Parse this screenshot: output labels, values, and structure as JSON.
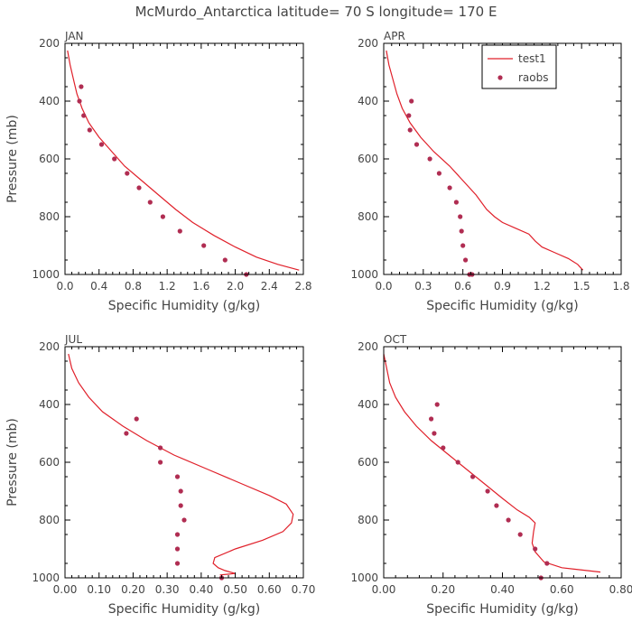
{
  "title": "McMurdo_Antarctica  latitude= 70 S longitude= 170 E",
  "colors": {
    "model": "#e0202a",
    "obs": "#b02d52",
    "axis": "#000000",
    "text": "#444444"
  },
  "legend": {
    "model_label": "test1",
    "obs_label": "raobs",
    "placement": "top-right of APR panel"
  },
  "chart_data": [
    {
      "type": "line+scatter",
      "panel": "JAN",
      "xlabel": "Specific Humidity (g/kg)",
      "ylabel": "Pressure (mb)",
      "xlim": [
        0,
        2.8
      ],
      "xticks": [
        0,
        0.4,
        0.8,
        1.2,
        1.6,
        2.0,
        2.4,
        2.8
      ],
      "xtick_labels": [
        "0.0",
        "0.4",
        "0.8",
        "1.2",
        "1.6",
        "2.0",
        "2.4",
        "2.8"
      ],
      "ylim": [
        200,
        1000
      ],
      "yticks": [
        200,
        400,
        600,
        800,
        1000
      ],
      "ytick_labels": [
        "200",
        "400",
        "600",
        "800",
        "1000"
      ],
      "model": {
        "name": "test1",
        "x": [
          0.03,
          0.06,
          0.1,
          0.14,
          0.2,
          0.28,
          0.4,
          0.55,
          0.7,
          0.9,
          1.1,
          1.3,
          1.5,
          1.75,
          2.0,
          2.25,
          2.5,
          2.75
        ],
        "p": [
          225,
          275,
          325,
          375,
          425,
          475,
          525,
          575,
          625,
          675,
          725,
          775,
          820,
          865,
          905,
          940,
          965,
          985
        ]
      },
      "obs": {
        "name": "raobs",
        "x": [
          0.19,
          0.17,
          0.22,
          0.29,
          0.43,
          0.58,
          0.73,
          0.87,
          1.0,
          1.15,
          1.35,
          1.63,
          1.88,
          2.13
        ],
        "p": [
          350,
          400,
          450,
          500,
          550,
          600,
          650,
          700,
          750,
          800,
          850,
          900,
          950,
          1000
        ]
      }
    },
    {
      "type": "line+scatter",
      "panel": "APR",
      "xlabel": "Specific Humidity (g/kg)",
      "ylabel": "",
      "xlim": [
        0,
        1.8
      ],
      "xticks": [
        0,
        0.3,
        0.6,
        0.9,
        1.2,
        1.5,
        1.8
      ],
      "xtick_labels": [
        "0.0",
        "0.3",
        "0.6",
        "0.9",
        "1.2",
        "1.5",
        "1.8"
      ],
      "ylim": [
        200,
        1000
      ],
      "yticks": [
        200,
        400,
        600,
        800,
        1000
      ],
      "ytick_labels": [
        "200",
        "400",
        "600",
        "800",
        "1000"
      ],
      "model": {
        "name": "test1",
        "x": [
          0.02,
          0.04,
          0.07,
          0.1,
          0.14,
          0.2,
          0.28,
          0.38,
          0.5,
          0.6,
          0.7,
          0.78,
          0.84,
          0.9,
          1.0,
          1.1,
          1.15,
          1.2,
          1.3,
          1.4,
          1.47,
          1.51
        ],
        "p": [
          225,
          275,
          325,
          375,
          425,
          475,
          525,
          575,
          625,
          675,
          725,
          775,
          800,
          820,
          840,
          860,
          885,
          905,
          925,
          945,
          965,
          985
        ]
      },
      "obs": {
        "name": "raobs",
        "x": [
          0.21,
          0.19,
          0.2,
          0.25,
          0.35,
          0.42,
          0.5,
          0.55,
          0.58,
          0.59,
          0.6,
          0.62,
          0.65,
          0.67
        ],
        "p": [
          400,
          450,
          500,
          550,
          600,
          650,
          700,
          750,
          800,
          850,
          900,
          950,
          1000,
          1000
        ]
      }
    },
    {
      "type": "line+scatter",
      "panel": "JUL",
      "xlabel": "Specific Humidity (g/kg)",
      "ylabel": "Pressure (mb)",
      "xlim": [
        0,
        0.7
      ],
      "xticks": [
        0,
        0.1,
        0.2,
        0.3,
        0.4,
        0.5,
        0.6,
        0.7
      ],
      "xtick_labels": [
        "0.00",
        "0.10",
        "0.20",
        "0.30",
        "0.40",
        "0.50",
        "0.60",
        "0.70"
      ],
      "ylim": [
        200,
        1000
      ],
      "yticks": [
        200,
        400,
        600,
        800,
        1000
      ],
      "ytick_labels": [
        "200",
        "400",
        "600",
        "800",
        "1000"
      ],
      "model": {
        "name": "test1",
        "x": [
          0.01,
          0.02,
          0.04,
          0.07,
          0.11,
          0.17,
          0.24,
          0.32,
          0.42,
          0.52,
          0.6,
          0.65,
          0.67,
          0.665,
          0.64,
          0.58,
          0.5,
          0.44,
          0.435,
          0.45,
          0.47,
          0.5,
          0.455
        ],
        "p": [
          225,
          275,
          325,
          375,
          425,
          475,
          525,
          575,
          625,
          675,
          715,
          745,
          780,
          810,
          840,
          870,
          900,
          930,
          950,
          965,
          975,
          985,
          990
        ]
      },
      "obs": {
        "name": "raobs",
        "x": [
          0.21,
          0.18,
          0.28,
          0.28,
          0.33,
          0.34,
          0.34,
          0.35,
          0.33,
          0.33,
          0.33,
          0.46
        ],
        "p": [
          450,
          500,
          550,
          600,
          650,
          700,
          750,
          800,
          850,
          900,
          950,
          1000
        ]
      }
    },
    {
      "type": "line+scatter",
      "panel": "OCT",
      "xlabel": "Specific Humidity (g/kg)",
      "ylabel": "",
      "xlim": [
        0,
        0.8
      ],
      "xticks": [
        0,
        0.2,
        0.4,
        0.6,
        0.8
      ],
      "xtick_labels": [
        "0.00",
        "0.20",
        "0.40",
        "0.60",
        "0.80"
      ],
      "ylim": [
        200,
        1000
      ],
      "yticks": [
        200,
        400,
        600,
        800,
        1000
      ],
      "ytick_labels": [
        "200",
        "400",
        "600",
        "800",
        "1000"
      ],
      "model": {
        "name": "test1",
        "x": [
          0.0,
          0.01,
          0.02,
          0.04,
          0.07,
          0.11,
          0.16,
          0.22,
          0.28,
          0.34,
          0.4,
          0.45,
          0.49,
          0.51,
          0.505,
          0.5,
          0.51,
          0.54,
          0.6,
          0.73
        ],
        "p": [
          225,
          275,
          325,
          375,
          425,
          475,
          525,
          575,
          625,
          675,
          725,
          765,
          790,
          810,
          840,
          880,
          910,
          945,
          965,
          980
        ]
      },
      "obs": {
        "name": "raobs",
        "x": [
          0.18,
          0.16,
          0.17,
          0.2,
          0.25,
          0.3,
          0.35,
          0.38,
          0.42,
          0.46,
          0.51,
          0.55,
          0.53
        ],
        "p": [
          400,
          450,
          500,
          550,
          600,
          650,
          700,
          750,
          800,
          850,
          900,
          950,
          1000
        ]
      }
    }
  ]
}
